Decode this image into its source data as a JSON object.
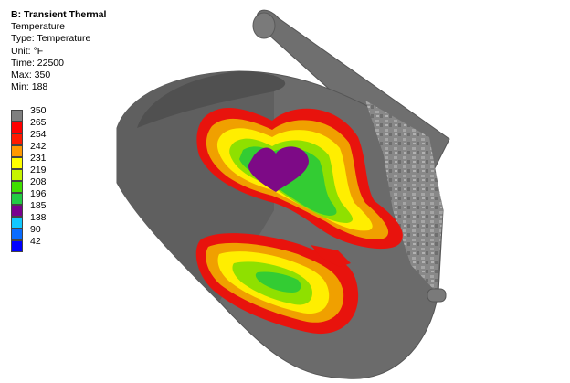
{
  "result": {
    "title": "B: Transient Thermal",
    "quantity": "Temperature",
    "type": "Type: Temperature",
    "unit": "Unit: °F",
    "time": "Time: 22500",
    "max": "Max: 350",
    "min": "Min: 188"
  },
  "legend": {
    "entries": [
      {
        "label": "350",
        "color": "#7f7f7f"
      },
      {
        "label": "265",
        "color": "#ff0000"
      },
      {
        "label": "254",
        "color": "#ff1a00"
      },
      {
        "label": "242",
        "color": "#ff9900"
      },
      {
        "label": "231",
        "color": "#ffff00"
      },
      {
        "label": "219",
        "color": "#c6f400"
      },
      {
        "label": "208",
        "color": "#40e000"
      },
      {
        "label": "196",
        "color": "#22cc44"
      },
      {
        "label": "185",
        "color": "#7a008f"
      },
      {
        "label": "138",
        "color": "#12c8ff"
      },
      {
        "label": "90",
        "color": "#0a6cff"
      },
      {
        "label": "42",
        "color": "#0000ff"
      }
    ]
  },
  "colors": {
    "body_gray": "#6b6b6b",
    "body_dark": "#4e4e4e",
    "hot_red": "#e8130d",
    "orange": "#f0a000",
    "yellow": "#ffee00",
    "green": "#33cc33",
    "purple": "#7d0a86"
  }
}
